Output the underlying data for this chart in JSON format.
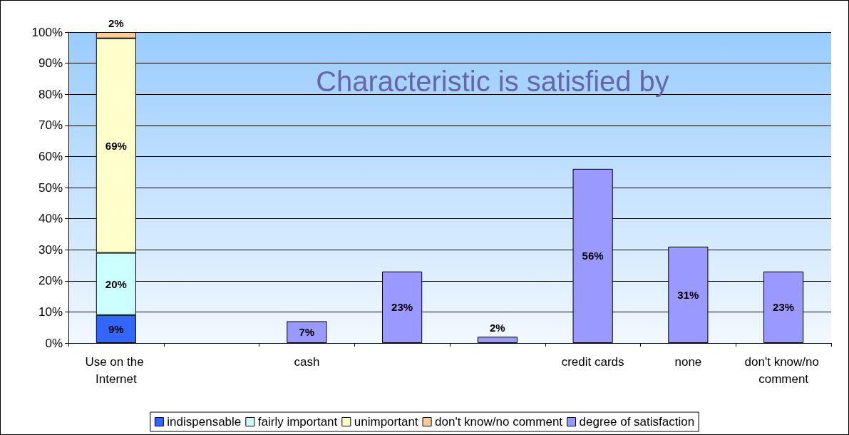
{
  "chart_data": {
    "type": "bar",
    "title": "Characteristic is satisfied by",
    "stacked": true,
    "categories": [
      "Use on the Internet",
      null,
      "cash",
      null,
      null,
      "credit cards",
      "none",
      "don't know/no comment"
    ],
    "series": [
      {
        "name": "indispensable",
        "color": "#3366ff",
        "values": [
          9,
          null,
          null,
          null,
          null,
          null,
          null,
          null
        ],
        "value_labels": [
          "9%",
          null,
          null,
          null,
          null,
          null,
          null,
          null
        ]
      },
      {
        "name": "fairly important",
        "color": "#ccffff",
        "values": [
          20,
          null,
          null,
          null,
          null,
          null,
          null,
          null
        ],
        "value_labels": [
          "20%",
          null,
          null,
          null,
          null,
          null,
          null,
          null
        ]
      },
      {
        "name": "unimportant",
        "color": "#ffffcc",
        "values": [
          69,
          null,
          null,
          null,
          null,
          null,
          null,
          null
        ],
        "value_labels": [
          "69%",
          null,
          null,
          null,
          null,
          null,
          null,
          null
        ]
      },
      {
        "name": "don't know/no comment",
        "color": "#ffcc99",
        "values": [
          2,
          null,
          null,
          null,
          null,
          null,
          null,
          null
        ],
        "value_labels": [
          "2%",
          null,
          null,
          null,
          null,
          null,
          null,
          null
        ]
      },
      {
        "name": "degree of satisfaction",
        "color": "#9999ff",
        "values": [
          null,
          null,
          7,
          23,
          2,
          56,
          31,
          23
        ],
        "value_labels": [
          null,
          null,
          "7%",
          "23%",
          "2%",
          "56%",
          "31%",
          "23%"
        ]
      }
    ],
    "ylim": [
      0,
      100
    ],
    "yticks": [
      {
        "value": 0,
        "label": "0%"
      },
      {
        "value": 10,
        "label": "10%"
      },
      {
        "value": 20,
        "label": "20%"
      },
      {
        "value": 30,
        "label": "30%"
      },
      {
        "value": 40,
        "label": "40%"
      },
      {
        "value": 50,
        "label": "50%"
      },
      {
        "value": 60,
        "label": "60%"
      },
      {
        "value": 70,
        "label": "70%"
      },
      {
        "value": 80,
        "label": "80%"
      },
      {
        "value": 90,
        "label": "90%"
      },
      {
        "value": 100,
        "label": "100%"
      }
    ],
    "grid": "y",
    "legend": "bottom"
  }
}
